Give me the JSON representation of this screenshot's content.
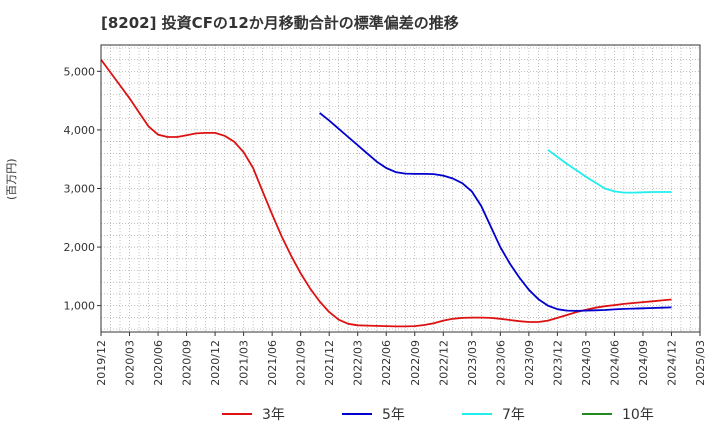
{
  "chart_data": {
    "type": "line",
    "title": "[8202]  投資CFの12か月移動合計の標準偏差の推移",
    "ylabel": "(百万円)",
    "ylim": [
      550,
      5450
    ],
    "yticks": [
      1000,
      2000,
      3000,
      4000,
      5000
    ],
    "ytick_labels": [
      "1,000",
      "2,000",
      "3,000",
      "4,000",
      "5,000"
    ],
    "x_start": "2019-12",
    "x_end": "2025-03",
    "xticks": [
      "2019/12",
      "2020/03",
      "2020/06",
      "2020/09",
      "2020/12",
      "2021/03",
      "2021/06",
      "2021/09",
      "2021/12",
      "2022/03",
      "2022/06",
      "2022/09",
      "2022/12",
      "2023/03",
      "2023/06",
      "2023/09",
      "2023/12",
      "2024/03",
      "2024/06",
      "2024/09",
      "2024/12",
      "2025/03"
    ],
    "grid": true,
    "legend": "bottom",
    "series": [
      {
        "name": "3年",
        "color": "#dd1111",
        "points": [
          [
            "2019-12",
            5200
          ],
          [
            "2020-01",
            4980
          ],
          [
            "2020-02",
            4760
          ],
          [
            "2020-03",
            4540
          ],
          [
            "2020-04",
            4300
          ],
          [
            "2020-05",
            4060
          ],
          [
            "2020-06",
            3920
          ],
          [
            "2020-07",
            3880
          ],
          [
            "2020-08",
            3880
          ],
          [
            "2020-09",
            3910
          ],
          [
            "2020-10",
            3940
          ],
          [
            "2020-11",
            3950
          ],
          [
            "2020-12",
            3950
          ],
          [
            "2021-01",
            3900
          ],
          [
            "2021-02",
            3800
          ],
          [
            "2021-03",
            3620
          ],
          [
            "2021-04",
            3350
          ],
          [
            "2021-05",
            2950
          ],
          [
            "2021-06",
            2560
          ],
          [
            "2021-07",
            2180
          ],
          [
            "2021-08",
            1850
          ],
          [
            "2021-09",
            1550
          ],
          [
            "2021-10",
            1290
          ],
          [
            "2021-11",
            1070
          ],
          [
            "2021-12",
            890
          ],
          [
            "2022-01",
            760
          ],
          [
            "2022-02",
            690
          ],
          [
            "2022-03",
            665
          ],
          [
            "2022-04",
            660
          ],
          [
            "2022-05",
            655
          ],
          [
            "2022-06",
            650
          ],
          [
            "2022-07",
            645
          ],
          [
            "2022-08",
            645
          ],
          [
            "2022-09",
            650
          ],
          [
            "2022-10",
            670
          ],
          [
            "2022-11",
            700
          ],
          [
            "2022-12",
            745
          ],
          [
            "2023-01",
            775
          ],
          [
            "2023-02",
            790
          ],
          [
            "2023-03",
            795
          ],
          [
            "2023-04",
            795
          ],
          [
            "2023-05",
            790
          ],
          [
            "2023-06",
            775
          ],
          [
            "2023-07",
            755
          ],
          [
            "2023-08",
            735
          ],
          [
            "2023-09",
            720
          ],
          [
            "2023-10",
            720
          ],
          [
            "2023-11",
            745
          ],
          [
            "2023-12",
            790
          ],
          [
            "2024-01",
            840
          ],
          [
            "2024-02",
            890
          ],
          [
            "2024-03",
            930
          ],
          [
            "2024-04",
            965
          ],
          [
            "2024-05",
            990
          ],
          [
            "2024-06",
            1010
          ],
          [
            "2024-07",
            1030
          ],
          [
            "2024-08",
            1045
          ],
          [
            "2024-09",
            1060
          ],
          [
            "2024-10",
            1075
          ],
          [
            "2024-11",
            1090
          ],
          [
            "2024-12",
            1105
          ]
        ]
      },
      {
        "name": "5年",
        "color": "#0000cc",
        "points": [
          [
            "2021-11",
            4290
          ],
          [
            "2021-12",
            4160
          ],
          [
            "2022-01",
            4020
          ],
          [
            "2022-02",
            3880
          ],
          [
            "2022-03",
            3740
          ],
          [
            "2022-04",
            3600
          ],
          [
            "2022-05",
            3460
          ],
          [
            "2022-06",
            3350
          ],
          [
            "2022-07",
            3280
          ],
          [
            "2022-08",
            3255
          ],
          [
            "2022-09",
            3250
          ],
          [
            "2022-10",
            3250
          ],
          [
            "2022-11",
            3245
          ],
          [
            "2022-12",
            3220
          ],
          [
            "2023-01",
            3170
          ],
          [
            "2023-02",
            3090
          ],
          [
            "2023-03",
            2950
          ],
          [
            "2023-04",
            2700
          ],
          [
            "2023-05",
            2350
          ],
          [
            "2023-06",
            2000
          ],
          [
            "2023-07",
            1720
          ],
          [
            "2023-08",
            1480
          ],
          [
            "2023-09",
            1270
          ],
          [
            "2023-10",
            1110
          ],
          [
            "2023-11",
            1000
          ],
          [
            "2023-12",
            940
          ],
          [
            "2024-01",
            915
          ],
          [
            "2024-02",
            910
          ],
          [
            "2024-03",
            915
          ],
          [
            "2024-04",
            920
          ],
          [
            "2024-05",
            925
          ],
          [
            "2024-06",
            935
          ],
          [
            "2024-07",
            945
          ],
          [
            "2024-08",
            950
          ],
          [
            "2024-09",
            955
          ],
          [
            "2024-10",
            960
          ],
          [
            "2024-11",
            965
          ],
          [
            "2024-12",
            970
          ]
        ]
      },
      {
        "name": "7年",
        "color": "#22eeee",
        "points": [
          [
            "2023-11",
            3660
          ],
          [
            "2023-12",
            3540
          ],
          [
            "2024-01",
            3420
          ],
          [
            "2024-02",
            3310
          ],
          [
            "2024-03",
            3200
          ],
          [
            "2024-04",
            3100
          ],
          [
            "2024-05",
            3000
          ],
          [
            "2024-06",
            2950
          ],
          [
            "2024-07",
            2930
          ],
          [
            "2024-08",
            2930
          ],
          [
            "2024-09",
            2935
          ],
          [
            "2024-10",
            2940
          ],
          [
            "2024-11",
            2940
          ],
          [
            "2024-12",
            2940
          ]
        ]
      },
      {
        "name": "10年",
        "color": "#228822",
        "points": []
      }
    ]
  }
}
